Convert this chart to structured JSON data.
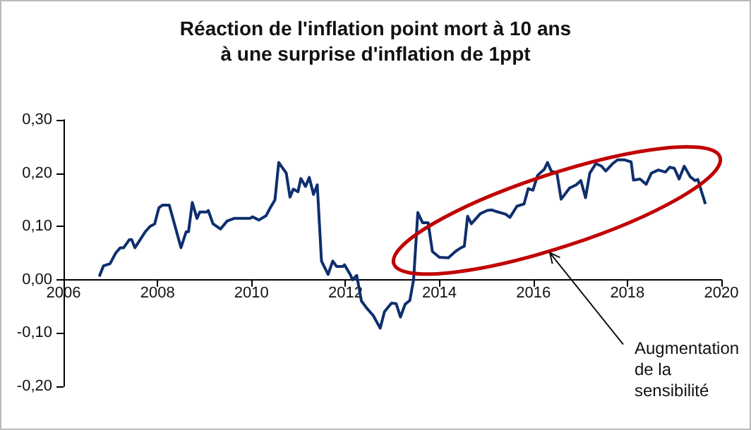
{
  "chart_data": {
    "type": "line",
    "title": "Réaction de l'inflation point mort à 10 ans\nà une surprise d'inflation de 1ppt",
    "x": [
      2006.76,
      2006.85,
      2006.99,
      2007.11,
      2007.21,
      2007.28,
      2007.4,
      2007.45,
      2007.52,
      2007.63,
      2007.74,
      2007.84,
      2007.94,
      2008.03,
      2008.11,
      2008.25,
      2008.5,
      2008.61,
      2008.66,
      2008.74,
      2008.84,
      2008.9,
      2009.05,
      2009.08,
      2009.18,
      2009.34,
      2009.48,
      2009.63,
      2009.97,
      2010.02,
      2010.16,
      2010.31,
      2010.4,
      2010.5,
      2010.58,
      2010.74,
      2010.82,
      2010.89,
      2010.99,
      2011.05,
      2011.15,
      2011.23,
      2011.32,
      2011.4,
      2011.49,
      2011.63,
      2011.73,
      2011.81,
      2011.95,
      2011.98,
      2012.1,
      2012.15,
      2012.24,
      2012.34,
      2012.45,
      2012.59,
      2012.74,
      2012.83,
      2012.98,
      2013.08,
      2013.17,
      2013.27,
      2013.37,
      2013.45,
      2013.54,
      2013.64,
      2013.76,
      2013.85,
      2014.0,
      2014.19,
      2014.34,
      2014.46,
      2014.53,
      2014.6,
      2014.68,
      2014.87,
      2015.02,
      2015.12,
      2015.21,
      2015.41,
      2015.5,
      2015.65,
      2015.8,
      2015.89,
      2015.99,
      2016.09,
      2016.23,
      2016.3,
      2016.38,
      2016.5,
      2016.59,
      2016.77,
      2016.91,
      2017.01,
      2017.11,
      2017.2,
      2017.33,
      2017.45,
      2017.54,
      2017.69,
      2017.79,
      2017.93,
      2018.08,
      2018.13,
      2018.27,
      2018.4,
      2018.51,
      2018.66,
      2018.81,
      2018.9,
      2019.0,
      2019.1,
      2019.21,
      2019.34,
      2019.44,
      2019.5,
      2019.58,
      2019.66
    ],
    "series": [
      {
        "color": "#0e2f6e",
        "values": [
          0.006,
          0.026,
          0.03,
          0.05,
          0.06,
          0.06,
          0.075,
          0.075,
          0.06,
          0.075,
          0.09,
          0.1,
          0.105,
          0.135,
          0.14,
          0.14,
          0.06,
          0.09,
          0.09,
          0.145,
          0.115,
          0.127,
          0.127,
          0.13,
          0.105,
          0.095,
          0.11,
          0.115,
          0.115,
          0.118,
          0.112,
          0.12,
          0.135,
          0.15,
          0.22,
          0.2,
          0.155,
          0.17,
          0.165,
          0.19,
          0.175,
          0.192,
          0.16,
          0.178,
          0.035,
          0.01,
          0.035,
          0.025,
          0.025,
          0.028,
          0.01,
          0.0,
          0.008,
          -0.04,
          -0.053,
          -0.067,
          -0.091,
          -0.06,
          -0.044,
          -0.045,
          -0.07,
          -0.046,
          -0.039,
          0.0,
          0.126,
          0.107,
          0.107,
          0.053,
          0.042,
          0.041,
          0.053,
          0.06,
          0.063,
          0.119,
          0.105,
          0.124,
          0.13,
          0.131,
          0.128,
          0.123,
          0.117,
          0.138,
          0.142,
          0.171,
          0.168,
          0.196,
          0.207,
          0.22,
          0.204,
          0.2,
          0.151,
          0.172,
          0.178,
          0.186,
          0.154,
          0.2,
          0.218,
          0.213,
          0.204,
          0.218,
          0.225,
          0.225,
          0.221,
          0.187,
          0.189,
          0.179,
          0.2,
          0.206,
          0.202,
          0.211,
          0.209,
          0.189,
          0.213,
          0.193,
          0.186,
          0.188,
          0.165,
          0.142
        ]
      }
    ],
    "xlim": [
      2006,
      2020
    ],
    "xticks": [
      2006,
      2008,
      2010,
      2012,
      2014,
      2016,
      2018,
      2020
    ],
    "ylim": [
      -0.2,
      0.3
    ],
    "yticks": [
      {
        "value": -0.2,
        "label": "-0,20"
      },
      {
        "value": -0.1,
        "label": "-0,10"
      },
      {
        "value": 0,
        "label": "0,00"
      },
      {
        "value": 0.1,
        "label": "0,10"
      },
      {
        "value": 0.2,
        "label": "0,20"
      },
      {
        "value": 0.3,
        "label": "0,30"
      }
    ],
    "annotations": [
      "Augmentation de la sensibilité"
    ],
    "marker": "none",
    "line_style": "solid"
  }
}
